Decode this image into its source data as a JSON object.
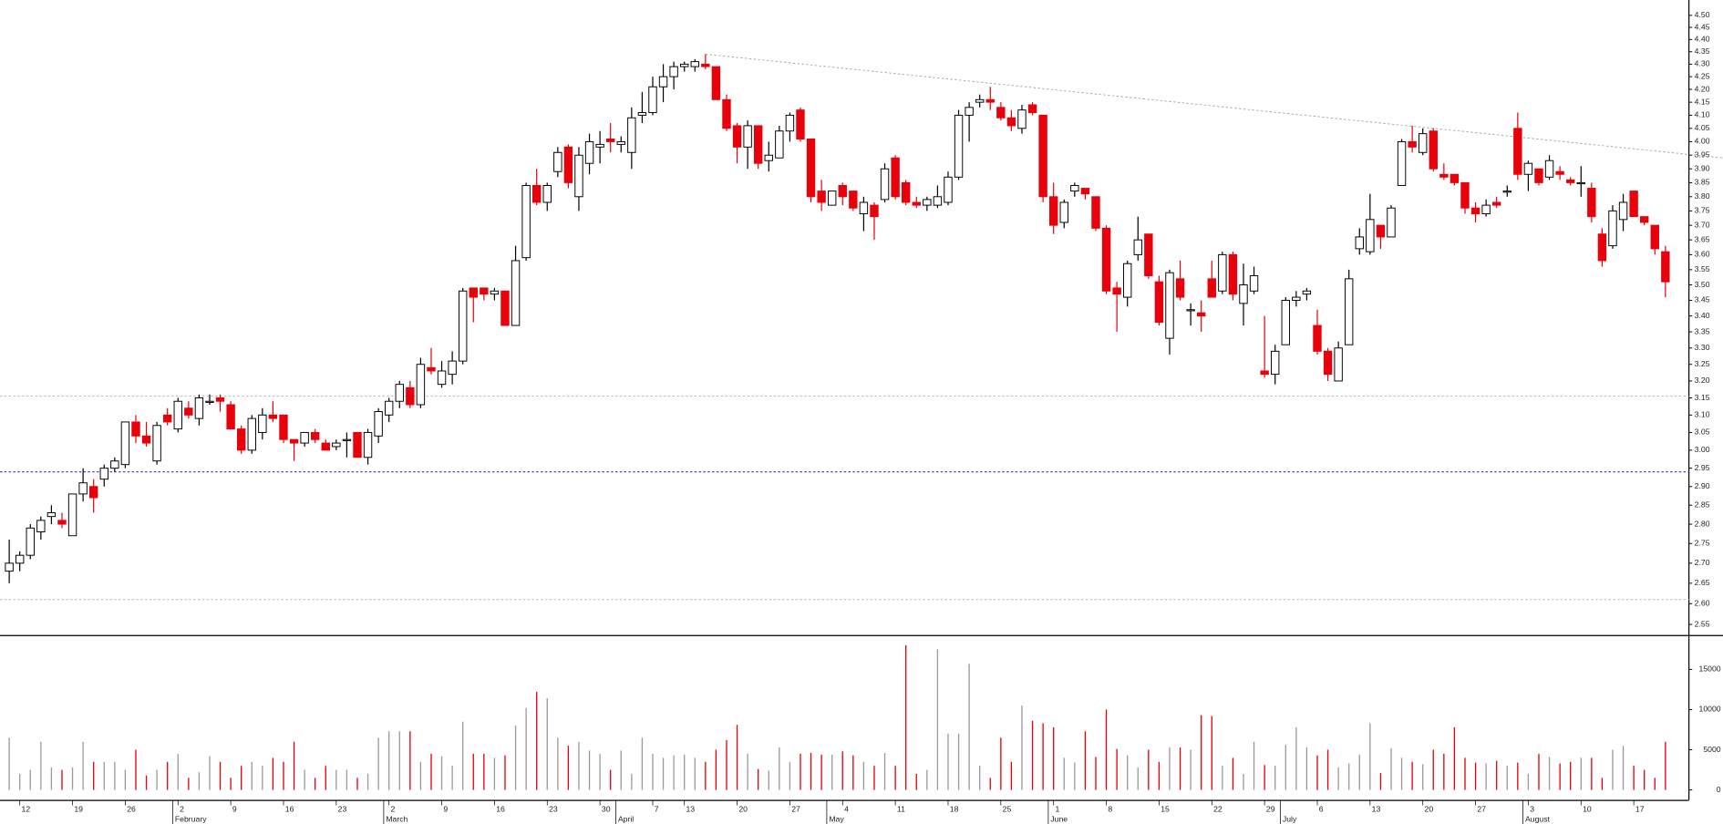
{
  "chart_data": {
    "type": "candlestick",
    "log_scale": true,
    "up_color": "#ffffff",
    "down_color": "#e8000b",
    "outline_color": "#000000",
    "ylim": [
      2.525,
      4.565
    ],
    "yticks": [
      2.55,
      {
        "value": 2.6,
        "label": "2.60"
      },
      2.65,
      {
        "value": 2.7,
        "label": "2.70"
      },
      2.75,
      {
        "value": 2.8,
        "label": "2.80"
      },
      2.85,
      {
        "value": 2.9,
        "label": "2.90"
      },
      2.95,
      {
        "value": 3,
        "label": "3.00"
      },
      3.05,
      {
        "value": 3.1,
        "label": "3.10"
      },
      3.15,
      {
        "value": 3.2,
        "label": "3.20"
      },
      3.25,
      {
        "value": 3.3,
        "label": "3.30"
      },
      3.35,
      {
        "value": 3.4,
        "label": "3.40"
      },
      3.45,
      {
        "value": 3.5,
        "label": "3.50"
      },
      3.55,
      {
        "value": 3.6,
        "label": "3.60"
      },
      3.65,
      {
        "value": 3.7,
        "label": "3.70"
      },
      3.75,
      {
        "value": 3.8,
        "label": "3.80"
      },
      3.85,
      {
        "value": 3.9,
        "label": "3.90"
      },
      3.95,
      {
        "value": 4,
        "label": "4.00"
      },
      4.05,
      {
        "value": 4.1,
        "label": "4.10"
      },
      4.15,
      {
        "value": 4.2,
        "label": "4.20"
      },
      4.25,
      {
        "value": 4.3,
        "label": "4.30"
      },
      4.35,
      {
        "value": 4.4,
        "label": "4.40"
      },
      4.45,
      {
        "value": 4.5,
        "label": "4.50"
      }
    ],
    "categories": [
      null,
      "12",
      null,
      null,
      null,
      null,
      "19",
      null,
      null,
      null,
      null,
      "26",
      null,
      null,
      null,
      null,
      "2",
      null,
      null,
      null,
      null,
      "9",
      null,
      null,
      null,
      null,
      "16",
      null,
      null,
      null,
      null,
      "23",
      null,
      null,
      null,
      null,
      "2",
      null,
      null,
      null,
      null,
      "9",
      null,
      null,
      null,
      null,
      "16",
      null,
      null,
      null,
      null,
      "23",
      null,
      null,
      null,
      null,
      "30",
      null,
      null,
      null,
      null,
      "7",
      null,
      null,
      "13",
      null,
      null,
      null,
      null,
      "20",
      null,
      null,
      null,
      null,
      "27",
      null,
      null,
      null,
      null,
      "4",
      null,
      null,
      null,
      null,
      "11",
      null,
      null,
      null,
      null,
      "18",
      null,
      null,
      null,
      null,
      "25",
      null,
      null,
      null,
      null,
      "1",
      null,
      null,
      null,
      null,
      "8",
      null,
      null,
      null,
      null,
      "15",
      null,
      null,
      null,
      null,
      "22",
      null,
      null,
      null,
      null,
      "29",
      null,
      null,
      null,
      null,
      "6",
      null,
      null,
      null,
      null,
      "13",
      null,
      null,
      null,
      null,
      "20",
      null,
      null,
      null,
      null,
      "27",
      null,
      null,
      null,
      null,
      "3",
      null,
      null,
      null,
      null,
      "10",
      null,
      null,
      null,
      null,
      "17",
      null,
      null,
      null
    ],
    "months": [
      null,
      null,
      null,
      null,
      null,
      null,
      null,
      null,
      null,
      null,
      null,
      null,
      null,
      null,
      null,
      null,
      "February",
      null,
      null,
      null,
      null,
      null,
      null,
      null,
      null,
      null,
      null,
      null,
      null,
      null,
      null,
      null,
      null,
      null,
      null,
      null,
      "March",
      null,
      null,
      null,
      null,
      null,
      null,
      null,
      null,
      null,
      null,
      null,
      null,
      null,
      null,
      null,
      null,
      null,
      null,
      null,
      null,
      null,
      "April",
      null,
      null,
      null,
      null,
      null,
      null,
      null,
      null,
      null,
      null,
      null,
      null,
      null,
      null,
      null,
      null,
      null,
      null,
      null,
      "May",
      null,
      null,
      null,
      null,
      null,
      null,
      null,
      null,
      null,
      null,
      null,
      null,
      null,
      null,
      null,
      null,
      null,
      null,
      null,
      null,
      "June",
      null,
      null,
      null,
      null,
      null,
      null,
      null,
      null,
      null,
      null,
      null,
      null,
      null,
      null,
      null,
      null,
      null,
      null,
      null,
      null,
      null,
      "July",
      null,
      null,
      null,
      null,
      null,
      null,
      null,
      null,
      null,
      null,
      null,
      null,
      null,
      null,
      null,
      null,
      null,
      null,
      null,
      null,
      null,
      null,
      "August",
      null,
      null,
      null,
      null,
      null,
      null,
      null,
      null,
      null,
      null,
      null,
      null,
      null
    ],
    "open": [
      2.68,
      2.7,
      2.72,
      2.78,
      2.82,
      2.81,
      2.77,
      2.88,
      2.9,
      2.92,
      2.95,
      2.96,
      3.08,
      3.04,
      2.97,
      3.1,
      3.06,
      3.12,
      3.09,
      3.14,
      3.15,
      3.13,
      3.06,
      3.0,
      3.05,
      3.1,
      3.1,
      3.03,
      3.02,
      3.05,
      3.02,
      3.01,
      3.03,
      3.05,
      2.98,
      3.04,
      3.1,
      3.14,
      3.18,
      3.13,
      3.24,
      3.19,
      3.22,
      3.26,
      3.49,
      3.49,
      3.47,
      3.48,
      3.37,
      3.59,
      3.84,
      3.78,
      3.89,
      3.98,
      3.8,
      3.92,
      3.98,
      4.01,
      3.99,
      3.96,
      4.1,
      4.11,
      4.21,
      4.25,
      4.29,
      4.29,
      4.3,
      4.29,
      4.16,
      4.06,
      3.98,
      4.06,
      3.93,
      3.94,
      4.04,
      4.12,
      4.01,
      3.82,
      3.77,
      3.84,
      3.82,
      3.74,
      3.77,
      3.79,
      3.94,
      3.85,
      3.78,
      3.77,
      3.77,
      3.78,
      3.87,
      4.1,
      4.15,
      4.16,
      4.13,
      4.09,
      4.05,
      4.14,
      4.1,
      3.8,
      3.71,
      3.82,
      3.83,
      3.8,
      3.69,
      3.49,
      3.46,
      3.6,
      3.67,
      3.51,
      3.33,
      3.52,
      3.42,
      3.41,
      3.52,
      3.48,
      3.6,
      3.44,
      3.48,
      3.23,
      3.22,
      3.31,
      3.45,
      3.47,
      3.37,
      3.29,
      3.2,
      3.31,
      3.62,
      3.61,
      3.7,
      3.66,
      3.84,
      4.0,
      3.96,
      4.04,
      3.88,
      3.88,
      3.85,
      3.76,
      3.74,
      3.78,
      3.82,
      4.05,
      3.88,
      3.9,
      3.87,
      3.89,
      3.86,
      3.85,
      3.83,
      3.67,
      3.63,
      3.72,
      3.82,
      3.73,
      3.7,
      3.61
    ],
    "high": [
      2.76,
      2.73,
      2.8,
      2.82,
      2.85,
      2.83,
      2.88,
      2.95,
      2.92,
      2.96,
      2.98,
      3.08,
      3.1,
      3.08,
      3.08,
      3.12,
      3.15,
      3.14,
      3.16,
      3.16,
      3.16,
      3.14,
      3.07,
      3.1,
      3.12,
      3.14,
      3.1,
      3.03,
      3.05,
      3.06,
      3.03,
      3.03,
      3.05,
      3.05,
      3.06,
      3.12,
      3.15,
      3.2,
      3.2,
      3.27,
      3.3,
      3.26,
      3.29,
      3.49,
      3.49,
      3.49,
      3.49,
      3.48,
      3.63,
      3.85,
      3.9,
      3.85,
      3.98,
      3.99,
      3.98,
      4.03,
      4.04,
      4.07,
      4.02,
      4.13,
      4.19,
      4.25,
      4.3,
      4.31,
      4.31,
      4.32,
      4.34,
      4.29,
      4.18,
      4.07,
      4.08,
      4.06,
      4.0,
      4.06,
      4.11,
      4.13,
      4.01,
      3.86,
      3.82,
      3.85,
      3.82,
      3.8,
      3.78,
      3.92,
      3.95,
      3.86,
      3.8,
      3.8,
      3.84,
      3.89,
      4.12,
      4.15,
      4.18,
      4.21,
      4.15,
      4.12,
      4.14,
      4.15,
      4.1,
      3.85,
      3.79,
      3.85,
      3.83,
      3.8,
      3.7,
      3.51,
      3.58,
      3.73,
      3.67,
      3.53,
      3.55,
      3.58,
      3.44,
      3.45,
      3.58,
      3.61,
      3.61,
      3.57,
      3.56,
      3.4,
      3.31,
      3.46,
      3.48,
      3.49,
      3.42,
      3.3,
      3.32,
      3.55,
      3.69,
      3.81,
      3.7,
      3.77,
      4.01,
      4.06,
      4.05,
      4.05,
      3.92,
      3.88,
      3.85,
      3.78,
      3.79,
      3.8,
      3.84,
      4.11,
      3.93,
      3.9,
      3.95,
      3.91,
      3.87,
      3.91,
      3.85,
      3.69,
      3.77,
      3.81,
      3.82,
      3.73,
      3.7,
      3.63
    ],
    "low": [
      2.65,
      2.68,
      2.71,
      2.76,
      2.8,
      2.79,
      2.77,
      2.86,
      2.83,
      2.9,
      2.94,
      2.95,
      3.02,
      3.01,
      2.96,
      3.07,
      3.05,
      3.09,
      3.07,
      3.13,
      3.11,
      3.06,
      2.99,
      2.99,
      3.03,
      3.08,
      3.02,
      2.97,
      3.01,
      3.02,
      3.0,
      3.0,
      2.98,
      2.98,
      2.96,
      3.02,
      3.08,
      3.12,
      3.12,
      3.12,
      3.22,
      3.18,
      3.19,
      3.25,
      3.38,
      3.45,
      3.45,
      3.37,
      3.37,
      3.58,
      3.77,
      3.75,
      3.87,
      3.83,
      3.75,
      3.88,
      3.92,
      3.96,
      3.96,
      3.9,
      4.07,
      4.1,
      4.15,
      4.2,
      4.27,
      4.27,
      4.28,
      4.16,
      4.04,
      3.92,
      3.9,
      3.9,
      3.89,
      3.94,
      4.0,
      4.0,
      3.78,
      3.75,
      3.77,
      3.77,
      3.75,
      3.68,
      3.65,
      3.78,
      3.79,
      3.77,
      3.76,
      3.75,
      3.76,
      3.77,
      3.86,
      4.0,
      4.13,
      4.12,
      4.08,
      4.04,
      4.03,
      4.1,
      3.78,
      3.67,
      3.69,
      3.8,
      3.79,
      3.68,
      3.47,
      3.35,
      3.43,
      3.58,
      3.52,
      3.37,
      3.28,
      3.45,
      3.37,
      3.35,
      3.46,
      3.47,
      3.45,
      3.37,
      3.47,
      3.21,
      3.19,
      3.31,
      3.43,
      3.45,
      3.28,
      3.2,
      3.2,
      3.31,
      3.6,
      3.6,
      3.62,
      3.66,
      3.84,
      3.96,
      3.95,
      3.89,
      3.86,
      3.84,
      3.74,
      3.71,
      3.73,
      3.76,
      3.8,
      3.86,
      3.82,
      3.84,
      3.86,
      3.86,
      3.84,
      3.8,
      3.71,
      3.56,
      3.62,
      3.68,
      3.73,
      3.7,
      3.6,
      3.46
    ],
    "close": [
      2.7,
      2.72,
      2.79,
      2.81,
      2.83,
      2.8,
      2.88,
      2.91,
      2.87,
      2.95,
      2.97,
      3.08,
      3.04,
      3.02,
      3.07,
      3.08,
      3.14,
      3.1,
      3.15,
      3.14,
      3.14,
      3.06,
      3.0,
      3.09,
      3.1,
      3.09,
      3.03,
      3.02,
      3.05,
      3.03,
      3.0,
      3.02,
      3.03,
      2.98,
      3.05,
      3.11,
      3.14,
      3.19,
      3.13,
      3.25,
      3.23,
      3.23,
      3.26,
      3.48,
      3.46,
      3.47,
      3.48,
      3.37,
      3.58,
      3.84,
      3.78,
      3.84,
      3.96,
      3.85,
      3.95,
      4.0,
      3.99,
      4.0,
      4.0,
      4.09,
      4.11,
      4.21,
      4.25,
      4.29,
      4.3,
      4.31,
      4.29,
      4.16,
      4.05,
      3.98,
      4.06,
      3.92,
      3.95,
      4.04,
      4.1,
      4.01,
      3.8,
      3.78,
      3.82,
      3.8,
      3.76,
      3.78,
      3.73,
      3.9,
      3.8,
      3.78,
      3.77,
      3.79,
      3.8,
      3.87,
      4.1,
      4.13,
      4.16,
      4.15,
      4.09,
      4.06,
      4.12,
      4.11,
      3.8,
      3.7,
      3.78,
      3.84,
      3.81,
      3.69,
      3.48,
      3.47,
      3.57,
      3.65,
      3.53,
      3.38,
      3.54,
      3.46,
      3.42,
      3.4,
      3.46,
      3.6,
      3.47,
      3.5,
      3.53,
      3.22,
      3.29,
      3.45,
      3.46,
      3.48,
      3.29,
      3.22,
      3.3,
      3.52,
      3.66,
      3.72,
      3.66,
      3.76,
      4.0,
      3.98,
      4.03,
      3.9,
      3.87,
      3.85,
      3.76,
      3.74,
      3.77,
      3.77,
      3.82,
      3.88,
      3.92,
      3.85,
      3.93,
      3.88,
      3.85,
      3.85,
      3.73,
      3.58,
      3.75,
      3.78,
      3.73,
      3.71,
      3.62,
      3.51
    ],
    "hlines": [
      {
        "value": 2.94,
        "color": "#2b35c8"
      },
      {
        "value": 3.155,
        "color": "#b8b8b8"
      },
      {
        "value": 2.61,
        "color": "#b8b8b8"
      }
    ],
    "trendline": {
      "from": 4.34,
      "to": 3.94,
      "color": "#a8a8a8"
    },
    "volume": {
      "up_color": "#9a9a9a",
      "down_color": "#e8000b",
      "ylim": [
        0,
        19000
      ],
      "yticks": [
        0,
        5000,
        10000,
        15000
      ],
      "values": [
        6500,
        2000,
        2500,
        6000,
        2800,
        2500,
        2800,
        6000,
        3500,
        3500,
        3500,
        2500,
        5000,
        1800,
        2500,
        3500,
        4500,
        1500,
        2200,
        4200,
        3500,
        1500,
        3000,
        3500,
        3000,
        4000,
        3500,
        6000,
        2500,
        1500,
        3000,
        2500,
        2500,
        1500,
        2000,
        6500,
        7300,
        7300,
        7300,
        3500,
        4500,
        4200,
        3000,
        8500,
        4500,
        4500,
        4000,
        4300,
        8000,
        10200,
        12200,
        11400,
        6500,
        5500,
        6000,
        4900,
        4500,
        2500,
        4900,
        2000,
        6500,
        4500,
        4000,
        4300,
        4400,
        4000,
        3500,
        5000,
        6200,
        8100,
        4500,
        2600,
        2400,
        5300,
        3500,
        4500,
        4600,
        4400,
        4400,
        4800,
        4300,
        3500,
        3000,
        4600,
        3000,
        18000,
        2000,
        2500,
        17500,
        7000,
        7000,
        15700,
        3000,
        1500,
        6500,
        3500,
        10500,
        8600,
        8300,
        7800,
        4000,
        3400,
        7300,
        4100,
        10000,
        5100,
        4300,
        2800,
        5000,
        3500,
        5300,
        5300,
        5000,
        9300,
        9200,
        3000,
        4000,
        2000,
        6000,
        3100,
        3000,
        5600,
        7800,
        5300,
        4300,
        5000,
        2800,
        3300,
        4400,
        8300,
        2100,
        5200,
        4000,
        3500,
        3200,
        5000,
        4500,
        7800,
        4000,
        3400,
        3300,
        3600,
        3000,
        3400,
        2000,
        4500,
        4100,
        3300,
        3500,
        4000,
        4000,
        1500,
        5000,
        5500,
        3000,
        2500,
        1500,
        6000
      ]
    }
  }
}
